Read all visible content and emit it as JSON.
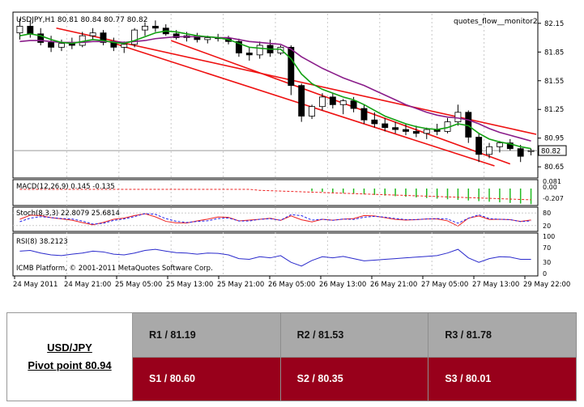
{
  "chart_data": {
    "type": "candlestick",
    "symbol_header": "USDJPY,H1  80.81 80.84 80.77 80.82",
    "indicator_name": "quotes_flow__monitor2",
    "current_price": 80.82,
    "ylim": [
      80.55,
      82.25
    ],
    "y_ticks": [
      "82.15",
      "81.85",
      "81.55",
      "81.25",
      "80.95",
      "80.65"
    ],
    "x_labels": [
      "24 May 2011",
      "24 May 21:00",
      "25 May 05:00",
      "25 May 13:00",
      "25 May 21:00",
      "26 May 05:00",
      "26 May 13:00",
      "26 May 21:00",
      "27 May 05:00",
      "27 May 13:00",
      "29 May 22:00"
    ],
    "candles": [
      [
        82.05,
        82.2,
        81.98,
        82.12
      ],
      [
        82.12,
        82.18,
        82.0,
        82.04
      ],
      [
        82.04,
        82.1,
        81.92,
        81.95
      ],
      [
        81.95,
        82.02,
        81.85,
        81.9
      ],
      [
        81.9,
        81.98,
        81.86,
        81.94
      ],
      [
        81.94,
        82.0,
        81.88,
        81.92
      ],
      [
        81.92,
        82.06,
        81.9,
        82.02
      ],
      [
        82.02,
        82.1,
        81.98,
        82.05
      ],
      [
        82.05,
        82.08,
        81.92,
        81.95
      ],
      [
        81.95,
        82.0,
        81.86,
        81.9
      ],
      [
        81.9,
        81.96,
        81.84,
        81.93
      ],
      [
        81.93,
        82.1,
        81.9,
        82.08
      ],
      [
        82.08,
        82.16,
        82.02,
        82.12
      ],
      [
        82.12,
        82.18,
        82.06,
        82.1
      ],
      [
        82.1,
        82.14,
        82.02,
        82.04
      ],
      [
        82.04,
        82.08,
        81.98,
        82.0
      ],
      [
        82.0,
        82.06,
        81.96,
        82.02
      ],
      [
        82.02,
        82.05,
        81.95,
        81.98
      ],
      [
        81.98,
        82.02,
        81.94,
        82.0
      ],
      [
        82.0,
        82.04,
        81.96,
        81.99
      ],
      [
        81.99,
        82.02,
        81.93,
        81.96
      ],
      [
        81.96,
        81.99,
        81.8,
        81.84
      ],
      [
        81.84,
        81.9,
        81.76,
        81.82
      ],
      [
        81.82,
        81.96,
        81.78,
        81.92
      ],
      [
        81.92,
        81.98,
        81.8,
        81.84
      ],
      [
        81.84,
        81.92,
        81.82,
        81.9
      ],
      [
        81.9,
        81.92,
        81.4,
        81.5
      ],
      [
        81.5,
        81.52,
        81.12,
        81.18
      ],
      [
        81.18,
        81.3,
        81.15,
        81.28
      ],
      [
        81.28,
        81.42,
        81.24,
        81.38
      ],
      [
        81.38,
        81.42,
        81.26,
        81.3
      ],
      [
        81.3,
        81.36,
        81.2,
        81.34
      ],
      [
        81.34,
        81.38,
        81.22,
        81.26
      ],
      [
        81.26,
        81.3,
        81.1,
        81.14
      ],
      [
        81.14,
        81.22,
        81.06,
        81.1
      ],
      [
        81.1,
        81.16,
        81.02,
        81.06
      ],
      [
        81.06,
        81.12,
        81.0,
        81.04
      ],
      [
        81.04,
        81.1,
        80.98,
        81.02
      ],
      [
        81.02,
        81.08,
        80.96,
        81.0
      ],
      [
        81.0,
        81.06,
        80.94,
        81.04
      ],
      [
        81.04,
        81.1,
        80.98,
        81.02
      ],
      [
        81.02,
        81.16,
        81.0,
        81.12
      ],
      [
        81.12,
        81.3,
        81.08,
        81.22
      ],
      [
        81.22,
        81.24,
        80.9,
        80.96
      ],
      [
        80.96,
        81.0,
        80.7,
        80.78
      ],
      [
        80.78,
        80.9,
        80.74,
        80.86
      ],
      [
        80.86,
        80.92,
        80.8,
        80.9
      ],
      [
        80.9,
        80.94,
        80.82,
        80.84
      ],
      [
        80.84,
        80.88,
        80.7,
        80.76
      ],
      [
        80.81,
        80.84,
        80.77,
        80.82
      ]
    ],
    "ma_green": [
      82.02,
      82.04,
      82.02,
      81.98,
      81.95,
      81.94,
      81.96,
      81.98,
      81.97,
      81.95,
      81.94,
      81.97,
      82.01,
      82.05,
      82.07,
      82.06,
      82.04,
      82.02,
      82.01,
      82.0,
      81.98,
      81.94,
      81.9,
      81.89,
      81.88,
      81.88,
      81.78,
      81.62,
      81.52,
      81.46,
      81.42,
      81.38,
      81.35,
      81.3,
      81.24,
      81.18,
      81.14,
      81.1,
      81.07,
      81.05,
      81.04,
      81.06,
      81.1,
      81.08,
      81.0,
      80.94,
      80.91,
      80.89,
      80.86,
      80.84
    ],
    "ma_purple": [
      81.96,
      81.97,
      81.97,
      81.96,
      81.95,
      81.95,
      81.95,
      81.96,
      81.96,
      81.96,
      81.95,
      81.96,
      81.97,
      81.99,
      82.0,
      82.01,
      82.01,
      82.01,
      82.01,
      82.0,
      82.0,
      81.98,
      81.96,
      81.95,
      81.94,
      81.93,
      81.88,
      81.8,
      81.74,
      81.68,
      81.63,
      81.58,
      81.54,
      81.5,
      81.45,
      81.4,
      81.35,
      81.3,
      81.26,
      81.22,
      81.19,
      81.17,
      81.16,
      81.14,
      81.1,
      81.05,
      81.01,
      80.98,
      80.95,
      80.92
    ],
    "channel": {
      "upper": [
        [
          0.08,
          82.1
        ],
        [
          1.0,
          80.99
        ]
      ],
      "lower": [
        [
          0.18,
          81.96
        ],
        [
          0.92,
          80.66
        ]
      ],
      "lower2": [
        [
          0.3,
          81.97
        ],
        [
          0.95,
          80.68
        ]
      ]
    },
    "macd": {
      "label": "MACD(12,26,9) 0.145 -0.135",
      "ticks": [
        "0.081",
        "0.00",
        "-0.207"
      ]
    },
    "stoch": {
      "label": "Stoch(8,3,3) 22.8079 25.6814",
      "ticks": [
        "80",
        "20"
      ]
    },
    "rsi": {
      "label": "RSI(8) 38.2123",
      "ticks": [
        "100",
        "70",
        "30",
        "0"
      ],
      "values": [
        60,
        62,
        55,
        50,
        48,
        52,
        55,
        60,
        58,
        52,
        50,
        55,
        62,
        65,
        60,
        56,
        55,
        52,
        55,
        54,
        50,
        40,
        38,
        45,
        42,
        48,
        30,
        20,
        35,
        45,
        42,
        46,
        40,
        34,
        36,
        38,
        40,
        42,
        44,
        46,
        48,
        55,
        65,
        42,
        30,
        40,
        45,
        44,
        38,
        38
      ]
    },
    "copyright": "ICMB Platform, © 2001-2011 MetaQuotes Software Corp."
  },
  "pivot": {
    "pair": "USD/JPY",
    "pivot_point": "Pivot point 80.94",
    "resistance": [
      "R1 / 81.19",
      "R2 / 81.53",
      "R3 / 81.78"
    ],
    "support": [
      "S1 / 80.60",
      "S2 / 80.35",
      "S3 / 80.01"
    ]
  }
}
